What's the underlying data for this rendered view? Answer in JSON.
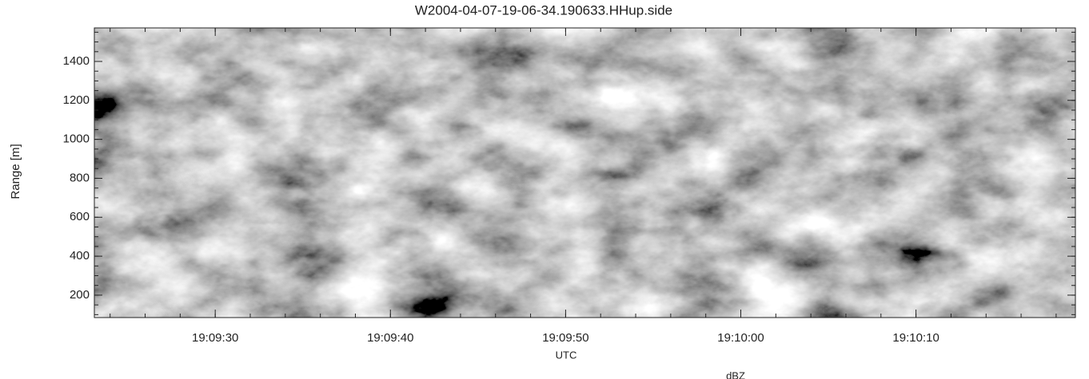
{
  "chart_data": {
    "type": "image",
    "title": "W2004-04-07-19-06-34.190633.HHup.side",
    "xlabel": "UTC",
    "ylabel": "Range [m]",
    "colorbar_label": "dBZ",
    "xlim": [
      68963.1,
      69019.1
    ],
    "xticks": [
      {
        "value": 68970,
        "label": "19:09:30"
      },
      {
        "value": 68980,
        "label": "19:09:40"
      },
      {
        "value": 68990,
        "label": "19:09:50"
      },
      {
        "value": 69000,
        "label": "19:10:00"
      },
      {
        "value": 69010,
        "label": "19:10:10"
      }
    ],
    "ylim": [
      85,
      1572
    ],
    "yticks": [
      200,
      400,
      600,
      800,
      1000,
      1200,
      1400
    ]
  }
}
